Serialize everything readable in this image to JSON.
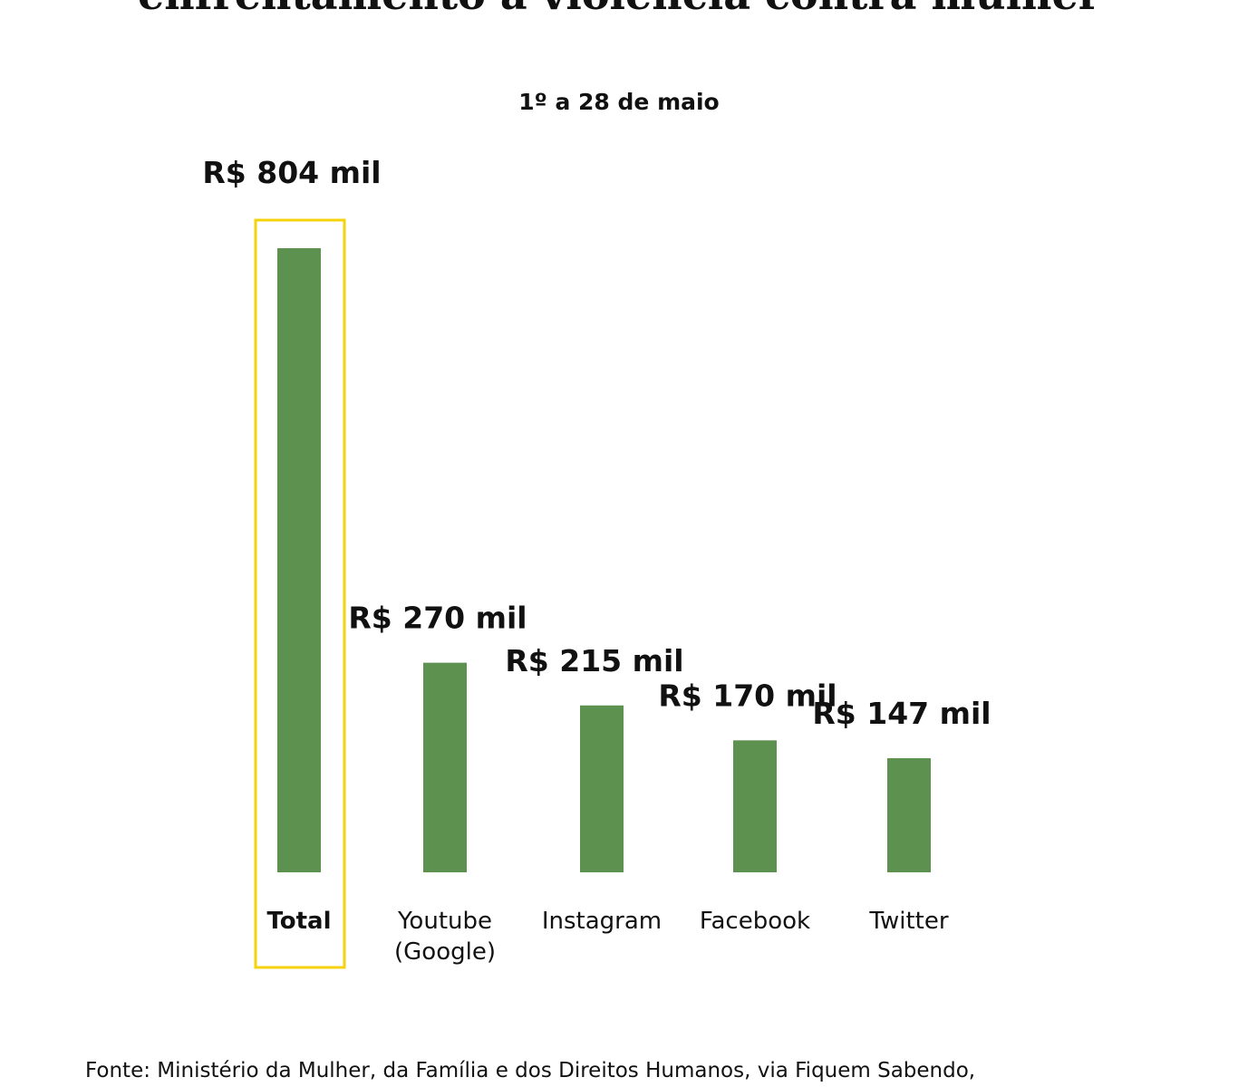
{
  "title": "enfrentamento à violência contra mulher",
  "subtitle": "1º a 28 de maio",
  "source": "Fonte: Ministério da Mulher, da Família e dos Direitos Humanos, via Fiquem Sabendo,",
  "colors": {
    "bar": "#5c914f",
    "highlight": "#f5d30c",
    "text": "#111111"
  },
  "chart_data": {
    "type": "bar",
    "title": "enfrentamento à violência contra mulher",
    "subtitle": "1º a 28 de maio",
    "xlabel": "",
    "ylabel": "",
    "grid": false,
    "categories": [
      [
        "Total"
      ],
      [
        "Youtube",
        "(Google)"
      ],
      [
        "Instagram"
      ],
      [
        "Facebook"
      ],
      [
        "Twitter"
      ]
    ],
    "values": [
      804,
      270,
      215,
      170,
      147
    ],
    "value_labels": [
      "R$ 804 mil",
      "R$ 270 mil",
      "R$ 215 mil",
      "R$ 170 mil",
      "R$ 147 mil"
    ],
    "highlighted_category": "Total",
    "ylim": [
      0,
      804
    ]
  }
}
